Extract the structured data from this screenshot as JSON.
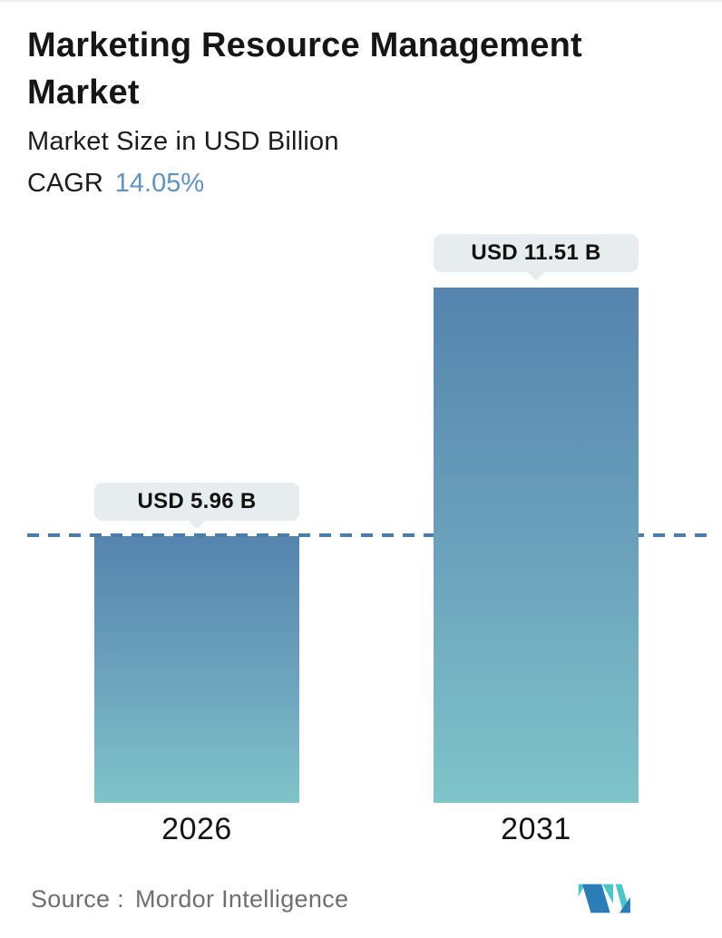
{
  "header": {
    "title": "Marketing Resource Management Market",
    "subtitle": "Market Size in USD Billion",
    "cagr_label": "CAGR",
    "cagr_value": "14.05%"
  },
  "chart_data": {
    "type": "bar",
    "categories": [
      "2026",
      "2031"
    ],
    "values": [
      5.96,
      11.51
    ],
    "value_labels": [
      "USD 5.96 B",
      "USD 11.51 B"
    ],
    "unit": "USD Billion",
    "title": "Marketing Resource Management Market",
    "ylabel": "Market Size in USD Billion",
    "ylim": [
      0,
      11.51
    ],
    "cagr_percent": "14.05%",
    "grid": false,
    "legend": "none",
    "reference_line": {
      "style": "dashed",
      "at_value": 5.96,
      "spans": "full-width"
    },
    "bar_color_top": "#5584ae",
    "bar_color_bottom": "#7fc4ca"
  },
  "footer": {
    "source_label": "Source :",
    "source_value": "Mordor Intelligence"
  },
  "icons": {
    "logo": "mordor-intelligence-logo"
  },
  "colors": {
    "cagr_value_text": "#5e93c3",
    "dashed_line": "#4a7da9",
    "bubble_background": "#e7edef",
    "title_text": "#161616",
    "source_text": "#6f6f6f",
    "logo_blue": "#2b7db7",
    "logo_teal": "#4cc7c9"
  }
}
